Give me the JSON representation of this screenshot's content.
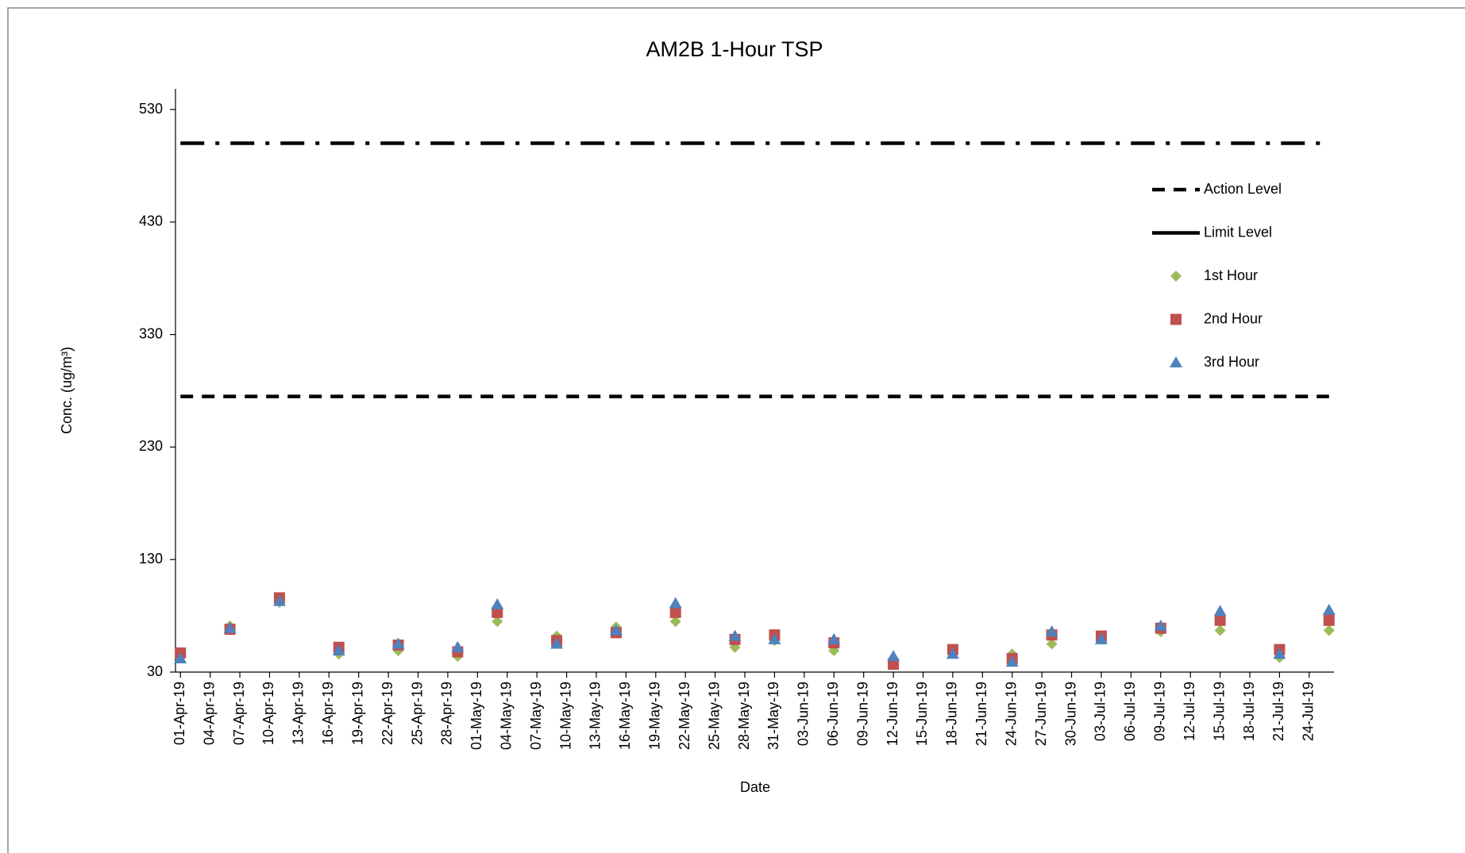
{
  "chart_data": {
    "type": "scatter",
    "title": "AM2B 1-Hour TSP",
    "x_label": "Date",
    "y_label": "Conc. (ug/m³)",
    "xlim": [
      "01-Apr-19",
      "26-Jul-19"
    ],
    "xticks": [
      "01-Apr-19",
      "04-Apr-19",
      "07-Apr-19",
      "10-Apr-19",
      "13-Apr-19",
      "16-Apr-19",
      "19-Apr-19",
      "22-Apr-19",
      "25-Apr-19",
      "28-Apr-19",
      "01-May-19",
      "04-May-19",
      "07-May-19",
      "10-May-19",
      "13-May-19",
      "16-May-19",
      "19-May-19",
      "22-May-19",
      "25-May-19",
      "28-May-19",
      "31-May-19",
      "03-Jun-19",
      "06-Jun-19",
      "09-Jun-19",
      "12-Jun-19",
      "15-Jun-19",
      "18-Jun-19",
      "21-Jun-19",
      "24-Jun-19",
      "27-Jun-19",
      "30-Jun-19",
      "03-Jul-19",
      "06-Jul-19",
      "09-Jul-19",
      "12-Jul-19",
      "15-Jul-19",
      "18-Jul-19",
      "21-Jul-19",
      "24-Jul-19"
    ],
    "ylim": [
      30,
      530
    ],
    "yticks": [
      30,
      130,
      230,
      330,
      430,
      530
    ],
    "legend": "right",
    "series": [
      {
        "name": "Action Level",
        "kind": "line",
        "dash": "dash",
        "color": "#000000",
        "x": [
          "01-Apr-19",
          "26-Jul-19"
        ],
        "values": [
          275,
          275
        ]
      },
      {
        "name": "Limit Level",
        "kind": "line",
        "dash": "dashdot",
        "color": "#000000",
        "x": [
          "01-Apr-19",
          "26-Jul-19"
        ],
        "values": [
          500,
          500
        ]
      },
      {
        "name": "1st Hour",
        "kind": "marker",
        "marker": "diamond",
        "color": "#9BBB59",
        "x": [
          "01-Apr-19",
          "06-Apr-19",
          "11-Apr-19",
          "17-Apr-19",
          "23-Apr-19",
          "29-Apr-19",
          "03-May-19",
          "09-May-19",
          "15-May-19",
          "21-May-19",
          "27-May-19",
          "31-May-19",
          "06-Jun-19",
          "12-Jun-19",
          "18-Jun-19",
          "24-Jun-19",
          "28-Jun-19",
          "03-Jul-19",
          "09-Jul-19",
          "15-Jul-19",
          "21-Jul-19",
          "26-Jul-19"
        ],
        "values": [
          44,
          71,
          92,
          46,
          49,
          44,
          75,
          62,
          70,
          75,
          52,
          58,
          49,
          42,
          47,
          46,
          55,
          59,
          66,
          67,
          43,
          67
        ]
      },
      {
        "name": "2nd Hour",
        "kind": "marker",
        "marker": "square",
        "color": "#C0504D",
        "x": [
          "01-Apr-19",
          "06-Apr-19",
          "11-Apr-19",
          "17-Apr-19",
          "23-Apr-19",
          "29-Apr-19",
          "03-May-19",
          "09-May-19",
          "15-May-19",
          "21-May-19",
          "27-May-19",
          "31-May-19",
          "06-Jun-19",
          "12-Jun-19",
          "18-Jun-19",
          "24-Jun-19",
          "28-Jun-19",
          "03-Jul-19",
          "09-Jul-19",
          "15-Jul-19",
          "21-Jul-19",
          "26-Jul-19"
        ],
        "values": [
          47,
          68,
          96,
          52,
          54,
          48,
          83,
          58,
          65,
          83,
          59,
          63,
          56,
          37,
          50,
          42,
          63,
          62,
          69,
          76,
          50,
          76
        ]
      },
      {
        "name": "3rd Hour",
        "kind": "marker",
        "marker": "triangle",
        "color": "#4F81BD",
        "x": [
          "01-Apr-19",
          "06-Apr-19",
          "11-Apr-19",
          "17-Apr-19",
          "23-Apr-19",
          "29-Apr-19",
          "03-May-19",
          "09-May-19",
          "15-May-19",
          "21-May-19",
          "27-May-19",
          "31-May-19",
          "06-Jun-19",
          "12-Jun-19",
          "18-Jun-19",
          "24-Jun-19",
          "28-Jun-19",
          "03-Jul-19",
          "09-Jul-19",
          "15-Jul-19",
          "21-Jul-19",
          "26-Jul-19"
        ],
        "values": [
          42,
          69,
          93,
          49,
          55,
          52,
          90,
          55,
          67,
          91,
          62,
          59,
          59,
          44,
          46,
          39,
          66,
          59,
          71,
          84,
          46,
          85
        ]
      }
    ]
  }
}
